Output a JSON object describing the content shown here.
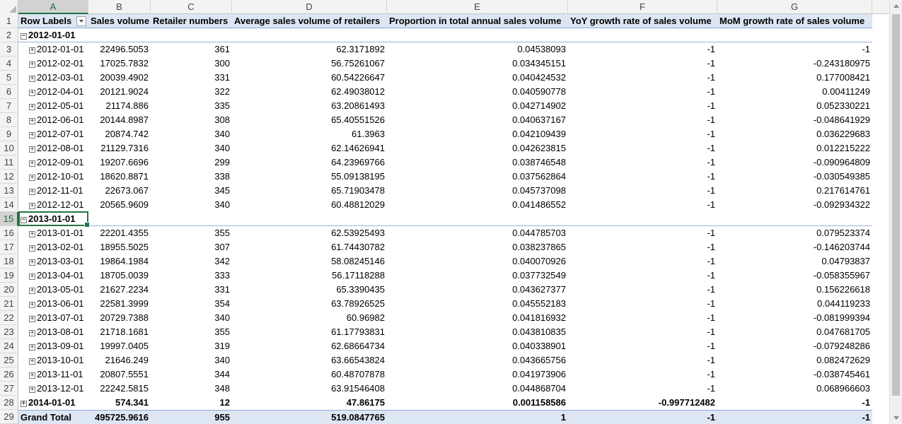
{
  "columns": [
    "A",
    "B",
    "C",
    "D",
    "E",
    "F",
    "G"
  ],
  "header": {
    "row_labels": "Row Labels",
    "sales_volume": "Sales volume",
    "retailer_numbers": "Retailer numbers",
    "avg_sales": "Average sales volume of retailers",
    "proportion": "Proportion in total annual sales volume",
    "yoy": "YoY growth rate of sales volume",
    "mom": "MoM growth rate of sales volume"
  },
  "row_numbers": [
    "1",
    "2",
    "3",
    "4",
    "5",
    "6",
    "7",
    "8",
    "9",
    "10",
    "11",
    "12",
    "13",
    "14",
    "15",
    "16",
    "17",
    "18",
    "19",
    "20",
    "21",
    "22",
    "23",
    "24",
    "25",
    "26",
    "27",
    "28",
    "29"
  ],
  "toggle": {
    "minus": "−",
    "plus": "+"
  },
  "rows": [
    {
      "kind": "group",
      "label": "2012-01-01"
    },
    {
      "kind": "item",
      "label": "2012-01-01",
      "b": "22496.5053",
      "c": "361",
      "d": "62.3171892",
      "e": "0.04538093",
      "f": "-1",
      "g": "-1"
    },
    {
      "kind": "item",
      "label": "2012-02-01",
      "b": "17025.7832",
      "c": "300",
      "d": "56.75261067",
      "e": "0.034345151",
      "f": "-1",
      "g": "-0.243180975"
    },
    {
      "kind": "item",
      "label": "2012-03-01",
      "b": "20039.4902",
      "c": "331",
      "d": "60.54226647",
      "e": "0.040424532",
      "f": "-1",
      "g": "0.177008421"
    },
    {
      "kind": "item",
      "label": "2012-04-01",
      "b": "20121.9024",
      "c": "322",
      "d": "62.49038012",
      "e": "0.040590778",
      "f": "-1",
      "g": "0.00411249"
    },
    {
      "kind": "item",
      "label": "2012-05-01",
      "b": "21174.886",
      "c": "335",
      "d": "63.20861493",
      "e": "0.042714902",
      "f": "-1",
      "g": "0.052330221"
    },
    {
      "kind": "item",
      "label": "2012-06-01",
      "b": "20144.8987",
      "c": "308",
      "d": "65.40551526",
      "e": "0.040637167",
      "f": "-1",
      "g": "-0.048641929"
    },
    {
      "kind": "item",
      "label": "2012-07-01",
      "b": "20874.742",
      "c": "340",
      "d": "61.3963",
      "e": "0.042109439",
      "f": "-1",
      "g": "0.036229683"
    },
    {
      "kind": "item",
      "label": "2012-08-01",
      "b": "21129.7316",
      "c": "340",
      "d": "62.14626941",
      "e": "0.042623815",
      "f": "-1",
      "g": "0.012215222"
    },
    {
      "kind": "item",
      "label": "2012-09-01",
      "b": "19207.6696",
      "c": "299",
      "d": "64.23969766",
      "e": "0.038746548",
      "f": "-1",
      "g": "-0.090964809"
    },
    {
      "kind": "item",
      "label": "2012-10-01",
      "b": "18620.8871",
      "c": "338",
      "d": "55.09138195",
      "e": "0.037562864",
      "f": "-1",
      "g": "-0.030549385"
    },
    {
      "kind": "item",
      "label": "2012-11-01",
      "b": "22673.067",
      "c": "345",
      "d": "65.71903478",
      "e": "0.045737098",
      "f": "-1",
      "g": "0.217614761"
    },
    {
      "kind": "item",
      "label": "2012-12-01",
      "b": "20565.9609",
      "c": "340",
      "d": "60.48812029",
      "e": "0.041486552",
      "f": "-1",
      "g": "-0.092934322"
    },
    {
      "kind": "group",
      "label": "2013-01-01"
    },
    {
      "kind": "item",
      "label": "2013-01-01",
      "b": "22201.4355",
      "c": "355",
      "d": "62.53925493",
      "e": "0.044785703",
      "f": "-1",
      "g": "0.079523374"
    },
    {
      "kind": "item",
      "label": "2013-02-01",
      "b": "18955.5025",
      "c": "307",
      "d": "61.74430782",
      "e": "0.038237865",
      "f": "-1",
      "g": "-0.146203744"
    },
    {
      "kind": "item",
      "label": "2013-03-01",
      "b": "19864.1984",
      "c": "342",
      "d": "58.08245146",
      "e": "0.040070926",
      "f": "-1",
      "g": "0.04793837"
    },
    {
      "kind": "item",
      "label": "2013-04-01",
      "b": "18705.0039",
      "c": "333",
      "d": "56.17118288",
      "e": "0.037732549",
      "f": "-1",
      "g": "-0.058355967"
    },
    {
      "kind": "item",
      "label": "2013-05-01",
      "b": "21627.2234",
      "c": "331",
      "d": "65.3390435",
      "e": "0.043627377",
      "f": "-1",
      "g": "0.156226618"
    },
    {
      "kind": "item",
      "label": "2013-06-01",
      "b": "22581.3999",
      "c": "354",
      "d": "63.78926525",
      "e": "0.045552183",
      "f": "-1",
      "g": "0.044119233"
    },
    {
      "kind": "item",
      "label": "2013-07-01",
      "b": "20729.7388",
      "c": "340",
      "d": "60.96982",
      "e": "0.041816932",
      "f": "-1",
      "g": "-0.081999394"
    },
    {
      "kind": "item",
      "label": "2013-08-01",
      "b": "21718.1681",
      "c": "355",
      "d": "61.17793831",
      "e": "0.043810835",
      "f": "-1",
      "g": "0.047681705"
    },
    {
      "kind": "item",
      "label": "2013-09-01",
      "b": "19997.0405",
      "c": "319",
      "d": "62.68664734",
      "e": "0.040338901",
      "f": "-1",
      "g": "-0.079248286"
    },
    {
      "kind": "item",
      "label": "2013-10-01",
      "b": "21646.249",
      "c": "340",
      "d": "63.66543824",
      "e": "0.043665756",
      "f": "-1",
      "g": "0.082472629"
    },
    {
      "kind": "item",
      "label": "2013-11-01",
      "b": "20807.5551",
      "c": "344",
      "d": "60.48707878",
      "e": "0.041973906",
      "f": "-1",
      "g": "-0.038745461"
    },
    {
      "kind": "item",
      "label": "2013-12-01",
      "b": "22242.5815",
      "c": "348",
      "d": "63.91546408",
      "e": "0.044868704",
      "f": "-1",
      "g": "0.068966603"
    },
    {
      "kind": "collapsed",
      "label": "2014-01-01",
      "b": "574.341",
      "c": "12",
      "d": "47.86175",
      "e": "0.001158586",
      "f": "-0.997712482",
      "g": "-1"
    },
    {
      "kind": "total",
      "label": "Grand Total",
      "b": "495725.9616",
      "c": "955",
      "d": "519.0847765",
      "e": "1",
      "f": "-1",
      "g": "-1"
    }
  ]
}
